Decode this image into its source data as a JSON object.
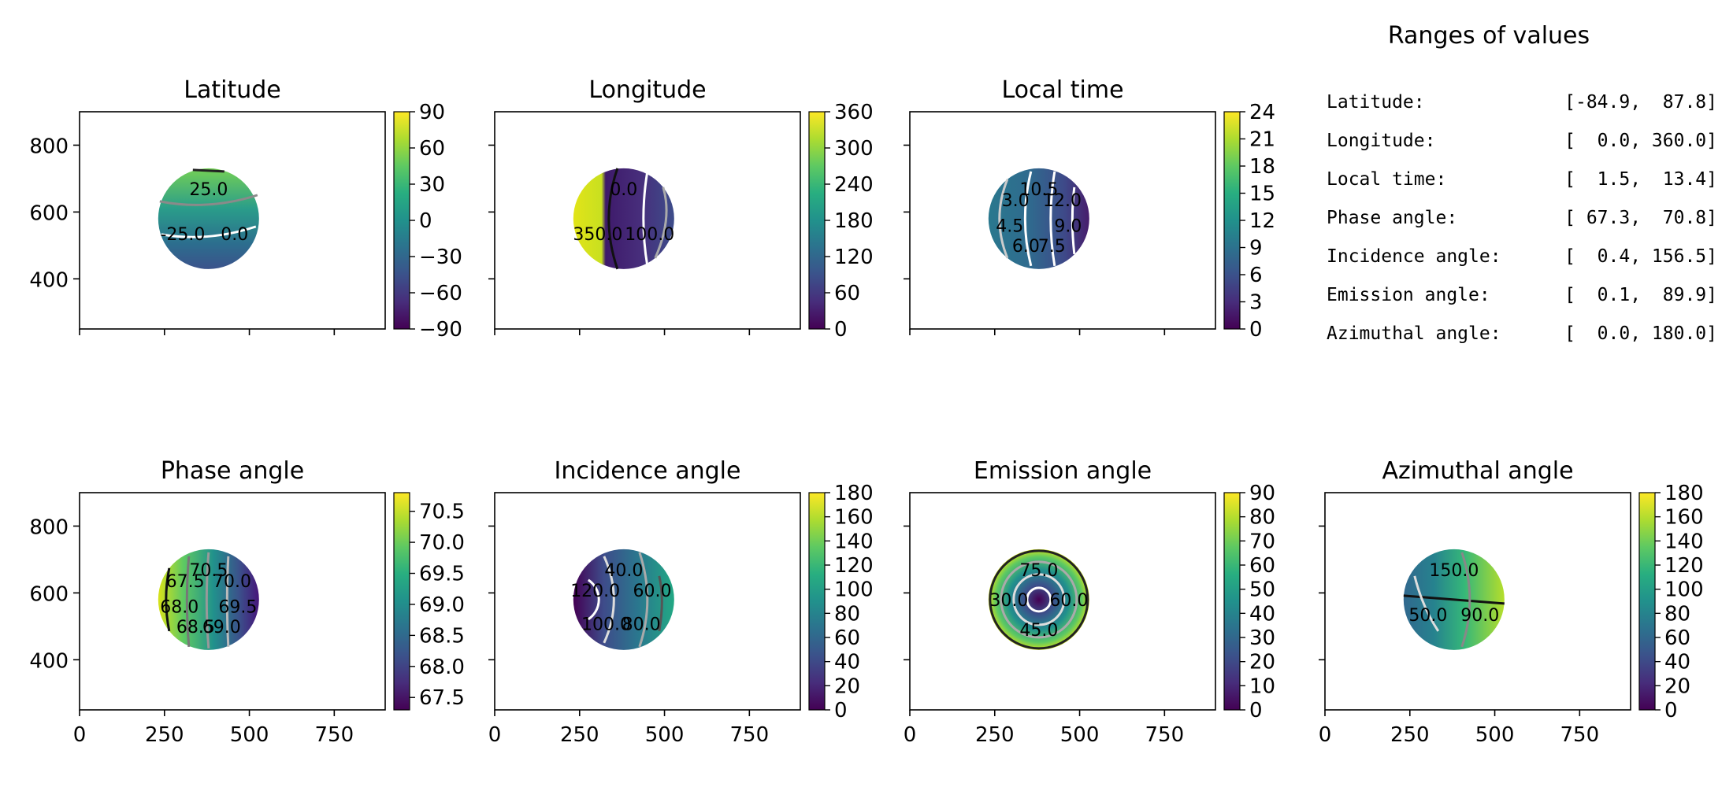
{
  "figure": {
    "panels": [
      {
        "title": "Latitude",
        "cbar_ticks": [
          "90",
          "60",
          "30",
          "0",
          "−30",
          "−60",
          "−90"
        ],
        "contour_labels": [
          "25.0",
          "0.0",
          "-25.0"
        ],
        "show_y_labels": true,
        "show_x_labels": false,
        "colormap": "viridis"
      },
      {
        "title": "Longitude",
        "cbar_ticks": [
          "360",
          "300",
          "240",
          "180",
          "120",
          "60",
          "0"
        ],
        "contour_labels": [
          "0.0",
          "100.0",
          "350.0"
        ],
        "show_y_labels": false,
        "show_x_labels": false,
        "colormap": "viridis"
      },
      {
        "title": "Local time",
        "cbar_ticks": [
          "24",
          "21",
          "18",
          "15",
          "12",
          "9",
          "6",
          "3",
          "0"
        ],
        "contour_labels": [
          "10.5",
          "12.0",
          "9.0",
          "7.5",
          "6.0",
          "4.5",
          "3.0"
        ],
        "show_y_labels": false,
        "show_x_labels": false,
        "colormap": "viridis"
      },
      {
        "title": "Phase angle",
        "cbar_ticks": [
          "70.5",
          "70.0",
          "69.5",
          "69.0",
          "68.5",
          "68.0",
          "67.5"
        ],
        "contour_labels": [
          "70.5",
          "70.0",
          "69.5",
          "69.0",
          "68.5",
          "68.0",
          "67.5"
        ],
        "show_y_labels": true,
        "show_x_labels": true,
        "colormap": "viridis"
      },
      {
        "title": "Incidence angle",
        "cbar_ticks": [
          "180",
          "160",
          "140",
          "120",
          "100",
          "80",
          "60",
          "40",
          "20",
          "0"
        ],
        "contour_labels": [
          "40.0",
          "60.0",
          "80.0",
          "100.0",
          "120.0"
        ],
        "show_y_labels": false,
        "show_x_labels": true,
        "colormap": "viridis"
      },
      {
        "title": "Emission angle",
        "cbar_ticks": [
          "90",
          "80",
          "70",
          "60",
          "50",
          "40",
          "30",
          "20",
          "10",
          "0"
        ],
        "contour_labels": [
          "75.0",
          "60.0",
          "45.0",
          "30.0"
        ],
        "show_y_labels": false,
        "show_x_labels": true,
        "colormap": "viridis"
      },
      {
        "title": "Azimuthal angle",
        "cbar_ticks": [
          "180",
          "160",
          "140",
          "120",
          "100",
          "80",
          "60",
          "40",
          "20",
          "0"
        ],
        "contour_labels": [
          "150.0",
          "90.0",
          "50.0"
        ],
        "show_y_labels": false,
        "show_x_labels": true,
        "colormap": "viridis"
      }
    ],
    "x_ticks": [
      "0",
      "250",
      "500",
      "750"
    ],
    "y_ticks": [
      "800",
      "600",
      "400"
    ],
    "ranges": {
      "title": "Ranges of values",
      "rows": [
        {
          "label": "Latitude:",
          "value": "[-84.9,  87.8]"
        },
        {
          "label": "Longitude:",
          "value": "[  0.0, 360.0]"
        },
        {
          "label": "Local time:",
          "value": "[  1.5,  13.4]"
        },
        {
          "label": "Phase angle:",
          "value": "[ 67.3,  70.8]"
        },
        {
          "label": "Incidence angle:",
          "value": "[  0.4, 156.5]"
        },
        {
          "label": "Emission angle:",
          "value": "[  0.1,  89.9]"
        },
        {
          "label": "Azimuthal angle:",
          "value": "[  0.0, 180.0]"
        }
      ]
    }
  },
  "chart_data": [
    {
      "type": "heatmap",
      "title": "Latitude",
      "x_ticks": [
        0,
        250,
        500,
        750
      ],
      "y_ticks": [
        400,
        600,
        800
      ],
      "xlim": [
        0,
        900
      ],
      "ylim": [
        250,
        900
      ],
      "colorbar_range": [
        -90,
        90
      ],
      "value_range": [
        -84.9,
        87.8
      ],
      "contour_levels": [
        -25.0,
        0.0,
        25.0
      ]
    },
    {
      "type": "heatmap",
      "title": "Longitude",
      "x_ticks": [
        0,
        250,
        500,
        750
      ],
      "y_ticks": [
        400,
        600,
        800
      ],
      "xlim": [
        0,
        900
      ],
      "ylim": [
        250,
        900
      ],
      "colorbar_range": [
        0,
        360
      ],
      "value_range": [
        0.0,
        360.0
      ],
      "contour_levels": [
        0.0,
        100.0,
        350.0
      ]
    },
    {
      "type": "heatmap",
      "title": "Local time",
      "x_ticks": [
        0,
        250,
        500,
        750
      ],
      "y_ticks": [
        400,
        600,
        800
      ],
      "xlim": [
        0,
        900
      ],
      "ylim": [
        250,
        900
      ],
      "colorbar_range": [
        0,
        24
      ],
      "value_range": [
        1.5,
        13.4
      ],
      "contour_levels": [
        3.0,
        4.5,
        6.0,
        7.5,
        9.0,
        10.5,
        12.0
      ]
    },
    {
      "type": "heatmap",
      "title": "Phase angle",
      "x_ticks": [
        0,
        250,
        500,
        750
      ],
      "y_ticks": [
        400,
        600,
        800
      ],
      "xlim": [
        0,
        900
      ],
      "ylim": [
        250,
        900
      ],
      "colorbar_range": [
        67.3,
        70.8
      ],
      "value_range": [
        67.3,
        70.8
      ],
      "contour_levels": [
        67.5,
        68.0,
        68.5,
        69.0,
        69.5,
        70.0,
        70.5
      ]
    },
    {
      "type": "heatmap",
      "title": "Incidence angle",
      "x_ticks": [
        0,
        250,
        500,
        750
      ],
      "y_ticks": [
        400,
        600,
        800
      ],
      "xlim": [
        0,
        900
      ],
      "ylim": [
        250,
        900
      ],
      "colorbar_range": [
        0,
        180
      ],
      "value_range": [
        0.4,
        156.5
      ],
      "contour_levels": [
        40.0,
        60.0,
        80.0,
        100.0,
        120.0
      ]
    },
    {
      "type": "heatmap",
      "title": "Emission angle",
      "x_ticks": [
        0,
        250,
        500,
        750
      ],
      "y_ticks": [
        400,
        600,
        800
      ],
      "xlim": [
        0,
        900
      ],
      "ylim": [
        250,
        900
      ],
      "colorbar_range": [
        0,
        90
      ],
      "value_range": [
        0.1,
        89.9
      ],
      "contour_levels": [
        30.0,
        45.0,
        60.0,
        75.0
      ]
    },
    {
      "type": "heatmap",
      "title": "Azimuthal angle",
      "x_ticks": [
        0,
        250,
        500,
        750
      ],
      "y_ticks": [
        400,
        600,
        800
      ],
      "xlim": [
        0,
        900
      ],
      "ylim": [
        250,
        900
      ],
      "colorbar_range": [
        0,
        180
      ],
      "value_range": [
        0.0,
        180.0
      ],
      "contour_levels": [
        50.0,
        90.0,
        150.0
      ]
    }
  ]
}
